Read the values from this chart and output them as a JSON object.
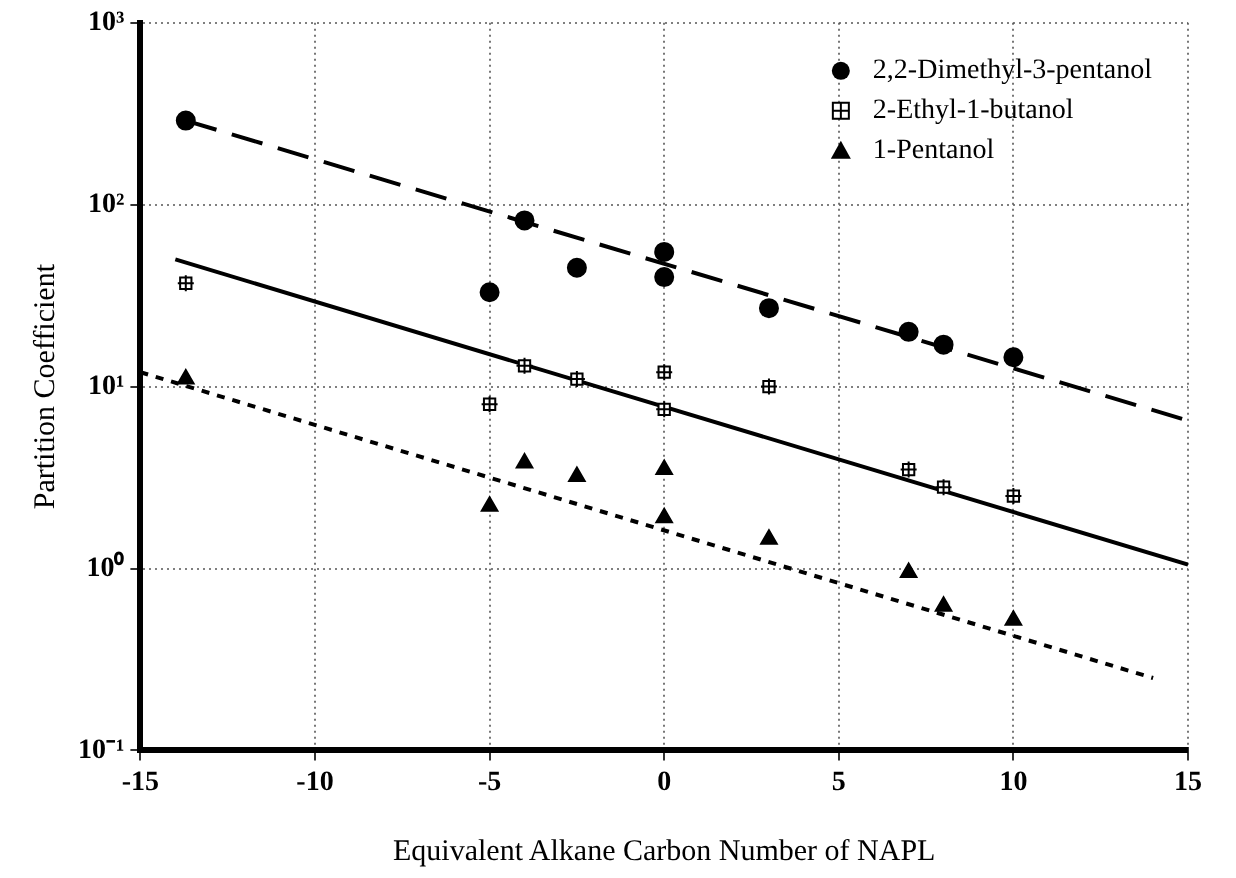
{
  "chart_data": {
    "type": "scatter",
    "xlabel": "Equivalent Alkane Carbon Number of NAPL",
    "ylabel": "Partition Coefficient",
    "xlim": [
      -15,
      15
    ],
    "xticks": [
      -15,
      -10,
      -5,
      0,
      5,
      10,
      15
    ],
    "ylim": [
      0.1,
      1000
    ],
    "yticks": [
      {
        "value": 0.1,
        "label": "10⁻¹"
      },
      {
        "value": 1,
        "label": "10⁰"
      },
      {
        "value": 10,
        "label": "10¹"
      },
      {
        "value": 100,
        "label": "10²"
      },
      {
        "value": 1000,
        "label": "10³"
      }
    ],
    "log": "y",
    "grid": true,
    "legend": "top right",
    "series": [
      {
        "name": "2,2-Dimethyl-3-pentanol",
        "color": "#000000",
        "marker": "circle",
        "x": [
          -13.7,
          -5,
          -4,
          -2.5,
          0,
          0,
          3,
          7,
          8,
          10
        ],
        "values": [
          290,
          33,
          82,
          45,
          55,
          40,
          27,
          20,
          17,
          14.5
        ]
      },
      {
        "name": "2-Ethyl-1-butanol",
        "color": "#000000",
        "marker": "square",
        "x": [
          -13.7,
          -5,
          -4,
          -2.5,
          0,
          0,
          3,
          7,
          8,
          10
        ],
        "values": [
          37,
          8,
          13,
          11,
          12,
          7.5,
          10,
          3.5,
          2.8,
          2.5
        ]
      },
      {
        "name": "1-Pentanol",
        "color": "#000000",
        "marker": "triangle",
        "x": [
          -13.7,
          -5,
          -4,
          -2.5,
          0,
          0,
          3,
          7,
          8,
          10
        ],
        "values": [
          11,
          2.2,
          3.8,
          3.2,
          3.5,
          1.9,
          1.45,
          0.95,
          0.62,
          0.52
        ]
      },
      {
        "type": "line",
        "color": "#000000",
        "line_style": "dashed",
        "marker": "none",
        "x": [
          -13.7,
          15
        ],
        "values": [
          290,
          6.5
        ]
      },
      {
        "type": "line",
        "color": "#000000",
        "line_style": "solid",
        "marker": "none",
        "x": [
          -14,
          15
        ],
        "values": [
          50,
          1.05
        ]
      },
      {
        "type": "line",
        "color": "#000000",
        "line_style": "dotted",
        "marker": "none",
        "x": [
          -15,
          14
        ],
        "values": [
          12,
          0.25
        ]
      }
    ]
  }
}
